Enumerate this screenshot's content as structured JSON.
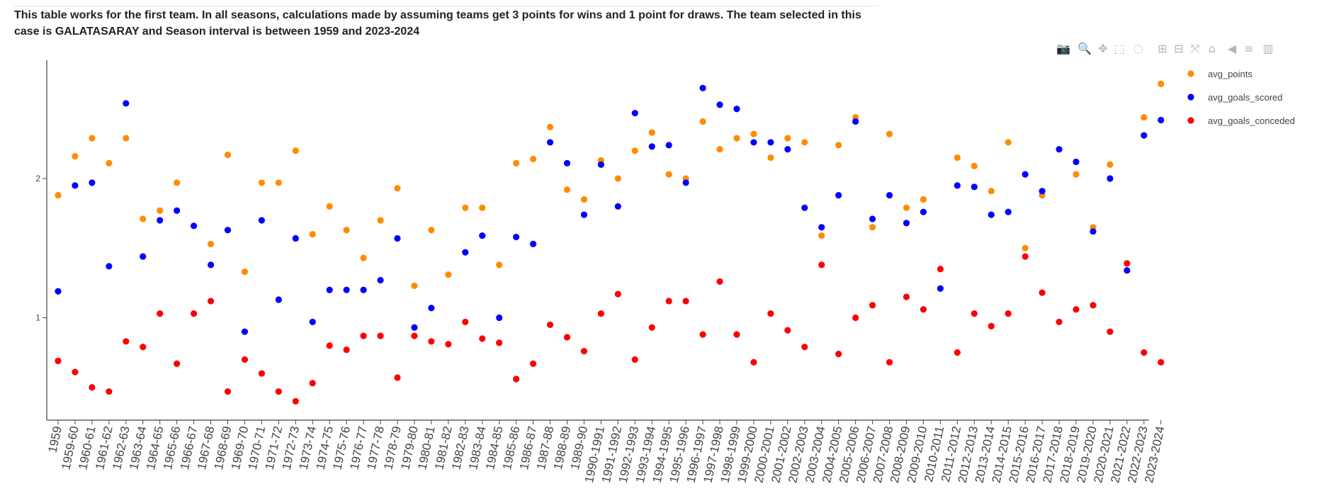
{
  "caption": "This table works for the first team. In all seasons, calculations made by assuming teams get 3 points for wins and 1 point for draws. The team selected in this case is GALATASARAY and Season interval is between 1959 and 2023-2024",
  "modebar": [
    {
      "name": "camera-icon",
      "glyph": "📷"
    },
    {
      "name": "zoom-icon",
      "glyph": "🔍"
    },
    {
      "name": "pan-icon",
      "glyph": "✥"
    },
    {
      "name": "box-select-icon",
      "glyph": "⬚"
    },
    {
      "name": "lasso-select-icon",
      "glyph": "◌"
    },
    {
      "name": "zoom-in-icon",
      "glyph": "⊞"
    },
    {
      "name": "zoom-out-icon",
      "glyph": "⊟"
    },
    {
      "name": "autoscale-icon",
      "glyph": "⤧"
    },
    {
      "name": "reset-axes-icon",
      "glyph": "⌂"
    },
    {
      "name": "spike-lines-icon",
      "glyph": "◀"
    },
    {
      "name": "compare-data-icon",
      "glyph": "≡"
    },
    {
      "name": "plotly-logo-icon",
      "glyph": "▥"
    }
  ],
  "chart_data": {
    "type": "scatter",
    "title": "",
    "xlabel": "",
    "ylabel": "",
    "ylim": [
      0.28,
      2.85
    ],
    "yticks": [
      1,
      2
    ],
    "grid": false,
    "legend_position": "top-right",
    "x": [
      "1959",
      "1959-60",
      "1960-61",
      "1961-62",
      "1962-63",
      "1963-64",
      "1964-65",
      "1965-66",
      "1966-67",
      "1967-68",
      "1968-69",
      "1969-70",
      "1970-71",
      "1971-72",
      "1972-73",
      "1973-74",
      "1974-75",
      "1975-76",
      "1976-77",
      "1977-78",
      "1978-79",
      "1979-80",
      "1980-81",
      "1981-82",
      "1982-83",
      "1983-84",
      "1984-85",
      "1985-86",
      "1986-87",
      "1987-88",
      "1988-89",
      "1989-90",
      "1990-1991",
      "1991-1992",
      "1992-1993",
      "1993-1994",
      "1994-1995",
      "1995-1996",
      "1996-1997",
      "1997-1998",
      "1998-1999",
      "1999-2000",
      "2000-2001",
      "2001-2002",
      "2002-2003",
      "2003-2004",
      "2004-2005",
      "2005-2006",
      "2006-2007",
      "2007-2008",
      "2008-2009",
      "2009-2010",
      "2010-2011",
      "2011-2012",
      "2012-2013",
      "2013-2014",
      "2014-2015",
      "2015-2016",
      "2016-2017",
      "2017-2018",
      "2018-2019",
      "2019-2020",
      "2020-2021",
      "2021-2022",
      "2022-2023",
      "2023-2024"
    ],
    "series": [
      {
        "name": "avg_points",
        "color": "#ff8c00",
        "values": [
          1.88,
          2.16,
          2.29,
          2.11,
          2.29,
          1.71,
          1.77,
          1.97,
          null,
          1.53,
          2.17,
          1.33,
          1.97,
          1.97,
          2.2,
          1.6,
          1.8,
          1.63,
          1.43,
          1.7,
          1.93,
          1.23,
          1.63,
          1.31,
          1.79,
          1.79,
          1.38,
          2.11,
          2.14,
          2.37,
          1.92,
          1.85,
          2.13,
          2.0,
          2.2,
          2.33,
          2.03,
          2.0,
          2.41,
          2.21,
          2.29,
          2.32,
          2.15,
          2.29,
          2.26,
          1.59,
          2.24,
          2.44,
          1.65,
          2.32,
          1.79,
          1.85,
          null,
          2.15,
          2.09,
          1.91,
          2.26,
          1.5,
          1.88,
          null,
          2.03,
          1.65,
          2.1,
          null,
          2.44,
          2.68
        ]
      },
      {
        "name": "avg_goals_scored",
        "color": "#0000ff",
        "values": [
          1.19,
          1.95,
          1.97,
          1.37,
          2.54,
          1.44,
          1.7,
          1.77,
          1.66,
          1.38,
          1.63,
          0.9,
          1.7,
          1.13,
          1.57,
          0.97,
          1.2,
          1.2,
          1.2,
          1.27,
          1.57,
          0.93,
          1.07,
          null,
          1.47,
          1.59,
          1.0,
          1.58,
          1.53,
          2.26,
          2.11,
          1.74,
          2.1,
          1.8,
          2.47,
          2.23,
          2.24,
          1.97,
          2.65,
          2.53,
          2.5,
          2.26,
          2.26,
          2.21,
          1.79,
          1.65,
          1.88,
          2.41,
          1.71,
          1.88,
          1.68,
          1.76,
          1.21,
          1.95,
          1.94,
          1.74,
          1.76,
          2.03,
          1.91,
          2.21,
          2.12,
          1.62,
          2.0,
          1.34,
          2.31,
          2.42
        ]
      },
      {
        "name": "avg_goals_conceded",
        "color": "#ff0000",
        "values": [
          0.69,
          0.61,
          0.5,
          0.47,
          0.83,
          0.79,
          1.03,
          0.67,
          1.03,
          1.12,
          0.47,
          0.7,
          0.6,
          0.47,
          0.4,
          0.53,
          0.8,
          0.77,
          0.87,
          0.87,
          0.57,
          0.87,
          0.83,
          0.81,
          0.97,
          0.85,
          0.82,
          0.56,
          0.67,
          0.95,
          0.86,
          0.76,
          1.03,
          1.17,
          0.7,
          0.93,
          1.12,
          1.12,
          0.88,
          1.26,
          0.88,
          0.68,
          1.03,
          0.91,
          0.79,
          1.38,
          0.74,
          1.0,
          1.09,
          0.68,
          1.15,
          1.06,
          1.35,
          0.75,
          1.03,
          0.94,
          1.03,
          1.44,
          1.18,
          0.97,
          1.06,
          1.09,
          0.9,
          1.39,
          0.75,
          0.68
        ]
      }
    ]
  }
}
